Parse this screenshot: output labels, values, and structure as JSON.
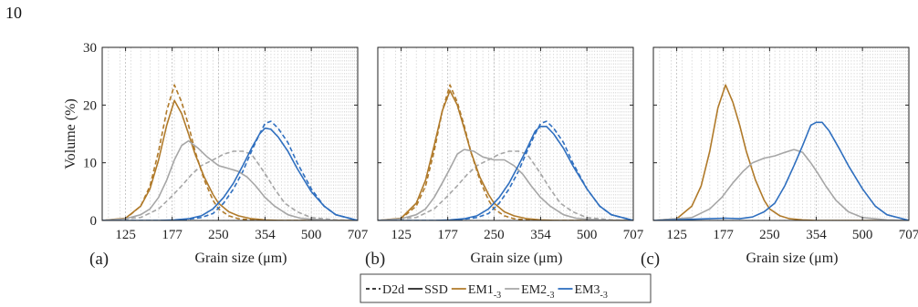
{
  "page_number": "10",
  "ylabel": "Volume (%)",
  "xlabel": "Grain size (μm)",
  "legend": {
    "entries": [
      {
        "label": "D2d",
        "style": "dashed",
        "color": "#222222"
      },
      {
        "label": "SSD",
        "style": "solid",
        "color": "#222222"
      },
      {
        "label": "EM1",
        "sub": "-3",
        "style": "solid",
        "color": "#b07a2a"
      },
      {
        "label": "EM2",
        "sub": "-3",
        "style": "solid",
        "color": "#a6a6a6"
      },
      {
        "label": "EM3",
        "sub": "-3",
        "style": "solid",
        "color": "#2f6fbf"
      }
    ]
  },
  "colors": {
    "EM1": "#b07a2a",
    "EM2": "#a6a6a6",
    "EM3": "#2f6fbf"
  },
  "chart_data": [
    {
      "type": "line",
      "panel_label": "(a)",
      "x_scale": "log",
      "xlim": [
        105,
        707
      ],
      "ylim": [
        0,
        30
      ],
      "yticks": [
        0,
        10,
        20,
        30
      ],
      "xticks": [
        "125",
        "177",
        "250",
        "354",
        "500",
        "707"
      ],
      "grid": "vertical",
      "series": [
        {
          "name": "EM1",
          "style": "solid",
          "x": [
            105,
            125,
            140,
            150,
            160,
            170,
            180,
            190,
            200,
            210,
            225,
            240,
            250,
            270,
            290,
            320,
            354,
            400,
            500,
            707
          ],
          "y": [
            0,
            0.4,
            2.5,
            5.5,
            10.5,
            16.5,
            20.8,
            18.5,
            15,
            11.5,
            7.5,
            4.5,
            3,
            1.5,
            0.8,
            0.3,
            0.1,
            0,
            0,
            0
          ]
        },
        {
          "name": "EM1",
          "style": "dashed",
          "x": [
            105,
            125,
            140,
            150,
            160,
            170,
            180,
            190,
            200,
            210,
            225,
            240,
            250,
            270,
            290,
            320,
            354,
            707
          ],
          "y": [
            0,
            0.3,
            2.5,
            6,
            12,
            19,
            23.5,
            20.5,
            16.5,
            12,
            7,
            3.5,
            2,
            0.8,
            0.3,
            0.1,
            0,
            0
          ]
        },
        {
          "name": "EM2",
          "style": "solid",
          "x": [
            105,
            125,
            140,
            150,
            160,
            170,
            180,
            190,
            200,
            215,
            230,
            250,
            270,
            290,
            310,
            330,
            354,
            380,
            420,
            460,
            500,
            600,
            707
          ],
          "y": [
            0,
            0.3,
            1,
            2,
            4,
            7,
            10.5,
            13,
            13.8,
            12.5,
            11,
            9.5,
            9,
            8.5,
            7.5,
            6,
            4,
            2.5,
            1,
            0.4,
            0.2,
            0,
            0
          ]
        },
        {
          "name": "EM2",
          "style": "dashed",
          "x": [
            105,
            140,
            160,
            175,
            190,
            205,
            220,
            240,
            260,
            280,
            300,
            320,
            340,
            360,
            380,
            410,
            450,
            500,
            600,
            707
          ],
          "y": [
            0,
            0.5,
            2,
            4,
            6,
            8,
            9.5,
            10.5,
            11.5,
            12,
            12,
            11.5,
            9.5,
            7.5,
            5.5,
            3,
            1.5,
            0.5,
            0.1,
            0
          ]
        },
        {
          "name": "EM3",
          "style": "solid",
          "x": [
            105,
            160,
            180,
            200,
            220,
            240,
            260,
            280,
            300,
            320,
            340,
            354,
            370,
            390,
            420,
            450,
            500,
            550,
            600,
            707
          ],
          "y": [
            0,
            0,
            0.1,
            0.3,
            0.8,
            2,
            4,
            6.5,
            9.5,
            12.5,
            15,
            16,
            15.8,
            14.5,
            12,
            9,
            5,
            2.5,
            1,
            0
          ]
        },
        {
          "name": "EM3",
          "style": "dashed",
          "x": [
            105,
            180,
            200,
            220,
            240,
            260,
            280,
            300,
            320,
            340,
            354,
            370,
            390,
            420,
            450,
            500,
            550,
            600,
            707
          ],
          "y": [
            0,
            0,
            0.2,
            0.5,
            1.2,
            3,
            5.5,
            8.5,
            12,
            15,
            16.8,
            17.2,
            16,
            13.5,
            10,
            5.5,
            2.5,
            1,
            0
          ]
        }
      ]
    },
    {
      "type": "line",
      "panel_label": "(b)",
      "x_scale": "log",
      "xlim": [
        105,
        707
      ],
      "ylim": [
        0,
        30
      ],
      "xticks": [
        "125",
        "177",
        "250",
        "354",
        "500",
        "707"
      ],
      "grid": "vertical",
      "series": [
        {
          "name": "EM1",
          "style": "solid",
          "x": [
            105,
            125,
            140,
            150,
            160,
            170,
            180,
            190,
            200,
            210,
            225,
            240,
            250,
            270,
            290,
            320,
            354,
            400,
            500,
            707
          ],
          "y": [
            0,
            0.4,
            3,
            7,
            13,
            19,
            22.5,
            20,
            16,
            12,
            7.5,
            4.5,
            3,
            1.5,
            0.8,
            0.3,
            0.1,
            0,
            0,
            0
          ]
        },
        {
          "name": "EM1",
          "style": "dashed",
          "x": [
            105,
            125,
            140,
            150,
            160,
            170,
            180,
            190,
            200,
            210,
            225,
            240,
            250,
            270,
            290,
            320,
            354,
            707
          ],
          "y": [
            0,
            0.3,
            2.5,
            6,
            12,
            19,
            23.5,
            20.5,
            16.5,
            12,
            7,
            3.5,
            2,
            0.8,
            0.3,
            0.1,
            0,
            0
          ]
        },
        {
          "name": "EM2",
          "style": "solid",
          "x": [
            105,
            125,
            140,
            150,
            160,
            170,
            180,
            190,
            200,
            215,
            230,
            250,
            270,
            290,
            310,
            330,
            354,
            380,
            420,
            460,
            500,
            600,
            707
          ],
          "y": [
            0,
            0.3,
            1,
            2,
            4,
            6.5,
            9,
            11.5,
            12.3,
            12,
            11,
            10.5,
            10.5,
            9.5,
            8,
            6,
            4,
            2.5,
            1,
            0.4,
            0.2,
            0,
            0
          ]
        },
        {
          "name": "EM2",
          "style": "dashed",
          "x": [
            105,
            140,
            160,
            175,
            190,
            205,
            220,
            240,
            260,
            280,
            300,
            320,
            340,
            360,
            380,
            410,
            450,
            500,
            600,
            707
          ],
          "y": [
            0,
            0.5,
            2,
            4,
            6,
            8,
            9.5,
            10.5,
            11.5,
            12,
            12,
            11.5,
            9.5,
            7.5,
            5.5,
            3,
            1.5,
            0.5,
            0.1,
            0
          ]
        },
        {
          "name": "EM3",
          "style": "solid",
          "x": [
            105,
            160,
            180,
            200,
            220,
            240,
            260,
            280,
            300,
            320,
            340,
            354,
            370,
            390,
            420,
            450,
            500,
            550,
            600,
            707
          ],
          "y": [
            0,
            0,
            0.1,
            0.3,
            0.8,
            2,
            4,
            6.5,
            9.5,
            12.5,
            15.5,
            16.3,
            16.3,
            15,
            12.5,
            9.5,
            5.5,
            2.5,
            1,
            0
          ]
        },
        {
          "name": "EM3",
          "style": "dashed",
          "x": [
            105,
            180,
            200,
            220,
            240,
            260,
            280,
            300,
            320,
            340,
            354,
            370,
            390,
            420,
            450,
            500,
            550,
            600,
            707
          ],
          "y": [
            0,
            0,
            0.2,
            0.5,
            1.2,
            3,
            5.5,
            8.5,
            12,
            15,
            16.8,
            17.2,
            16,
            13.5,
            10,
            5.5,
            2.5,
            1,
            0
          ]
        }
      ]
    },
    {
      "type": "line",
      "panel_label": "(c)",
      "x_scale": "log",
      "xlim": [
        105,
        707
      ],
      "ylim": [
        0,
        30
      ],
      "xticks": [
        "125",
        "177",
        "250",
        "354",
        "500",
        "707"
      ],
      "grid": "vertical",
      "series": [
        {
          "name": "EM1",
          "style": "solid",
          "x": [
            105,
            125,
            140,
            150,
            160,
            170,
            180,
            190,
            200,
            210,
            225,
            240,
            250,
            270,
            290,
            320,
            354,
            707
          ],
          "y": [
            0,
            0.3,
            2.5,
            6,
            12,
            19.5,
            23.5,
            20.5,
            16.5,
            12,
            7,
            3.5,
            2,
            0.8,
            0.3,
            0.1,
            0,
            0
          ]
        },
        {
          "name": "EM2",
          "style": "solid",
          "x": [
            105,
            140,
            160,
            175,
            190,
            205,
            220,
            240,
            260,
            280,
            300,
            320,
            340,
            360,
            380,
            410,
            450,
            500,
            600,
            707
          ],
          "y": [
            0,
            0.5,
            2,
            4,
            6.5,
            8.5,
            10,
            10.8,
            11.2,
            11.8,
            12.3,
            11.8,
            10,
            8,
            6,
            3.5,
            1.5,
            0.5,
            0.1,
            0
          ]
        },
        {
          "name": "EM3",
          "style": "solid",
          "x": [
            105,
            140,
            160,
            180,
            200,
            220,
            240,
            260,
            280,
            300,
            320,
            340,
            354,
            370,
            390,
            420,
            450,
            500,
            550,
            600,
            707
          ],
          "y": [
            0,
            0.2,
            0.3,
            0.4,
            0.3,
            0.6,
            1.5,
            3,
            6,
            9.5,
            13,
            16.5,
            17,
            17,
            15.5,
            12.5,
            9.5,
            5.5,
            2.5,
            1,
            0
          ]
        }
      ]
    }
  ]
}
